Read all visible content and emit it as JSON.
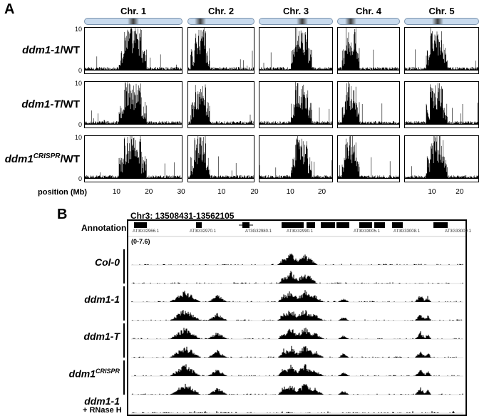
{
  "panel_a": {
    "letter": "A",
    "chromosomes": [
      {
        "label": "Chr. 1",
        "length_mb": 30.4,
        "centromere_mb": 15.0
      },
      {
        "label": "Chr. 2",
        "length_mb": 19.7,
        "centromere_mb": 3.6
      },
      {
        "label": "Chr. 3",
        "length_mb": 23.5,
        "centromere_mb": 13.6
      },
      {
        "label": "Chr. 4",
        "length_mb": 18.6,
        "centromere_mb": 3.9
      },
      {
        "label": "Chr. 5",
        "length_mb": 27.0,
        "centromere_mb": 11.7
      }
    ],
    "rows": [
      {
        "prefix": "ddm1-1",
        "sup": "",
        "suffix": "/WT"
      },
      {
        "prefix": "ddm1-T",
        "sup": "",
        "suffix": "/WT"
      },
      {
        "prefix": "ddm1",
        "sup": "CRISPR",
        "suffix": "/WT"
      }
    ],
    "y_min": "0",
    "y_max": "10",
    "x_title": "position (Mb)",
    "x_ticks": [
      {
        "chr": 0,
        "values": [
          "10",
          "20",
          "30"
        ]
      },
      {
        "chr": 1,
        "values": [
          "10",
          "20"
        ]
      },
      {
        "chr": 2,
        "values": [
          "10",
          "20"
        ]
      },
      {
        "chr": 4,
        "values": [
          "10",
          "20"
        ]
      }
    ]
  },
  "panel_b": {
    "letter": "B",
    "region": "Chr3: 13508431-13562105",
    "annotation_label": "Annotation",
    "genes": [
      "AT3G32966.1",
      "AT3G32970.1",
      "AT3G32980.1",
      "AT3G32990.1",
      "AT3G33005.1",
      "AT3G33008.1",
      "AT3G33009.1"
    ],
    "data_range": "(0-7.6)",
    "groups": [
      {
        "prefix": "Col-0",
        "sup": "",
        "tracks": 2
      },
      {
        "prefix": "ddm1-1",
        "sup": "",
        "tracks": 2
      },
      {
        "prefix": "ddm1-T",
        "sup": "",
        "tracks": 2
      },
      {
        "prefix": "ddm1",
        "sup": "CRISPR",
        "tracks": 2
      },
      {
        "prefix": "ddm1-1",
        "sup": "",
        "tracks": 1
      }
    ],
    "rnase_label": "+ RNase H"
  },
  "colors": {
    "ideogram": "#c9dbee",
    "signal": "#000000"
  }
}
